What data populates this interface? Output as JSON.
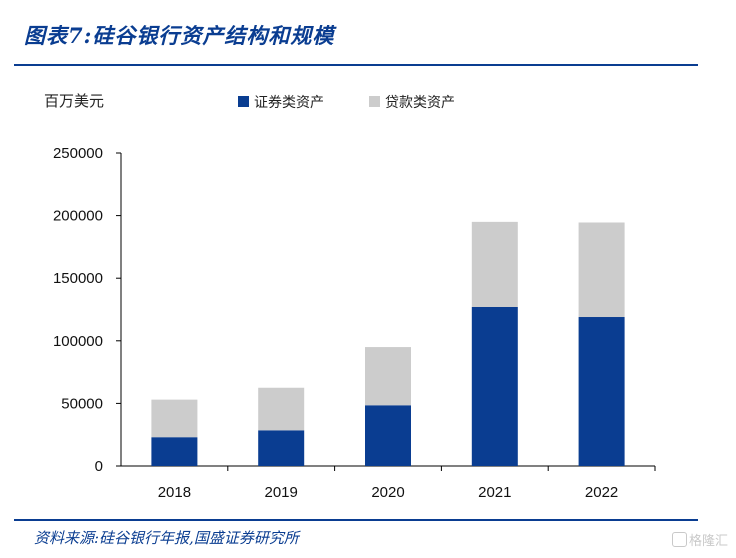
{
  "header": {
    "title": "图表7:硅谷银行资产结构和规模"
  },
  "footer": {
    "source": "资料来源:硅谷银行年报,国盛证券研究所",
    "watermark": "格隆汇"
  },
  "colors": {
    "securities": "#0a3d91",
    "loans": "#cccccc",
    "rule": "#0a3d91"
  },
  "chart_data": {
    "type": "bar",
    "stacked": true,
    "unit_label": "百万美元",
    "categories": [
      "2018",
      "2019",
      "2020",
      "2021",
      "2022"
    ],
    "series": [
      {
        "name": "证券类资产",
        "values": [
          23000,
          28500,
          48500,
          127000,
          119000
        ]
      },
      {
        "name": "贷款类资产",
        "values": [
          30000,
          34000,
          46500,
          68000,
          75500
        ]
      }
    ],
    "ylim": [
      0,
      250000
    ],
    "yticks": [
      "0",
      "50000",
      "100000",
      "150000",
      "200000",
      "250000"
    ],
    "legend_position": "top",
    "grid": false
  }
}
